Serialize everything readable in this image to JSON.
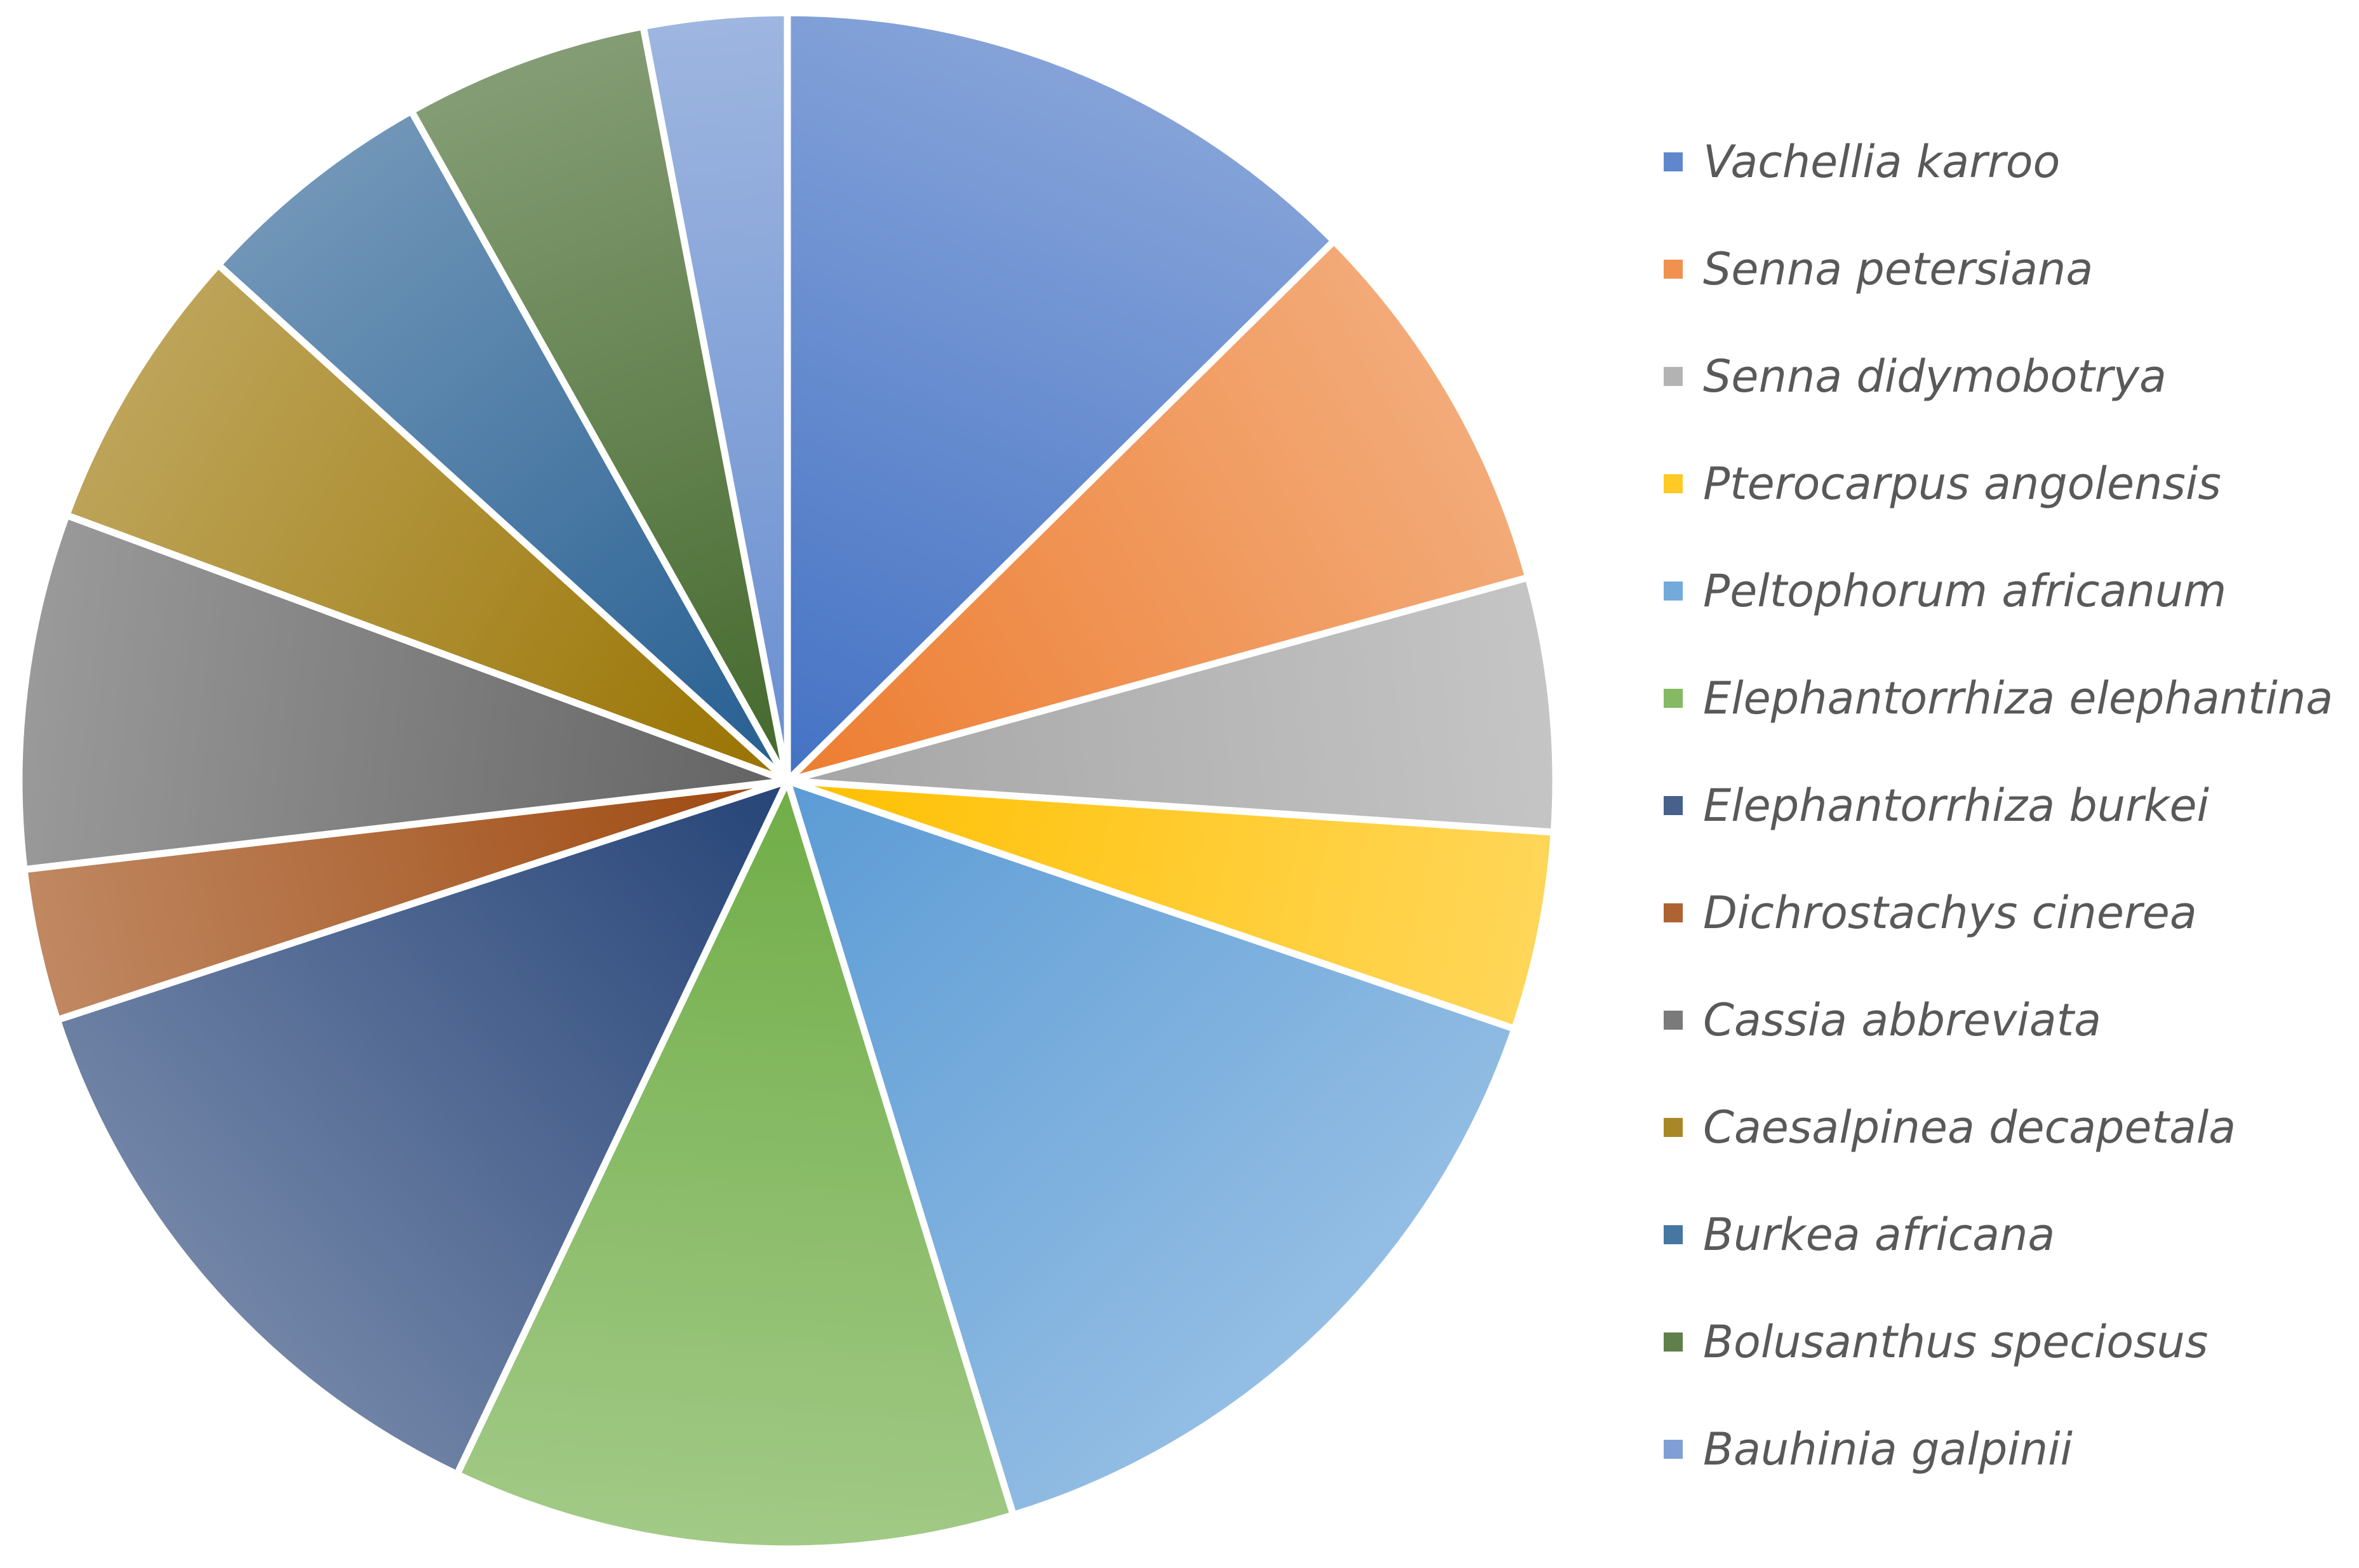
{
  "chart_data": {
    "type": "pie",
    "title": "",
    "legend_position": "right",
    "slices": [
      {
        "label": "Vachellia karroo",
        "value": 13.0,
        "color": "#4472C4"
      },
      {
        "label": "Senna petersiana",
        "value": 8.4,
        "color": "#ED7D31"
      },
      {
        "label": "Senna didymobotrya",
        "value": 5.5,
        "color": "#A5A5A5"
      },
      {
        "label": "Pterocarpus angolensis",
        "value": 4.3,
        "color": "#FFC000"
      },
      {
        "label": "Peltophorum africanum",
        "value": 15.5,
        "color": "#5B9BD5"
      },
      {
        "label": "Elephantorrhiza elephantina",
        "value": 12.2,
        "color": "#70AD47"
      },
      {
        "label": "Elephantorrhiza burkei",
        "value": 13.3,
        "color": "#264478"
      },
      {
        "label": "Dichrostachys cinerea",
        "value": 3.3,
        "color": "#9E480E"
      },
      {
        "label": "Cassia abbreviata",
        "value": 7.7,
        "color": "#636363"
      },
      {
        "label": "Caesalpinea decapetala",
        "value": 6.3,
        "color": "#997300"
      },
      {
        "label": "Burkea africana",
        "value": 5.3,
        "color": "#255E91"
      },
      {
        "label": "Bolusanthus speciosus",
        "value": 5.3,
        "color": "#43682B"
      },
      {
        "label": "Bauhinia galpinii",
        "value": 3.1,
        "color": "#698ED0"
      }
    ]
  }
}
